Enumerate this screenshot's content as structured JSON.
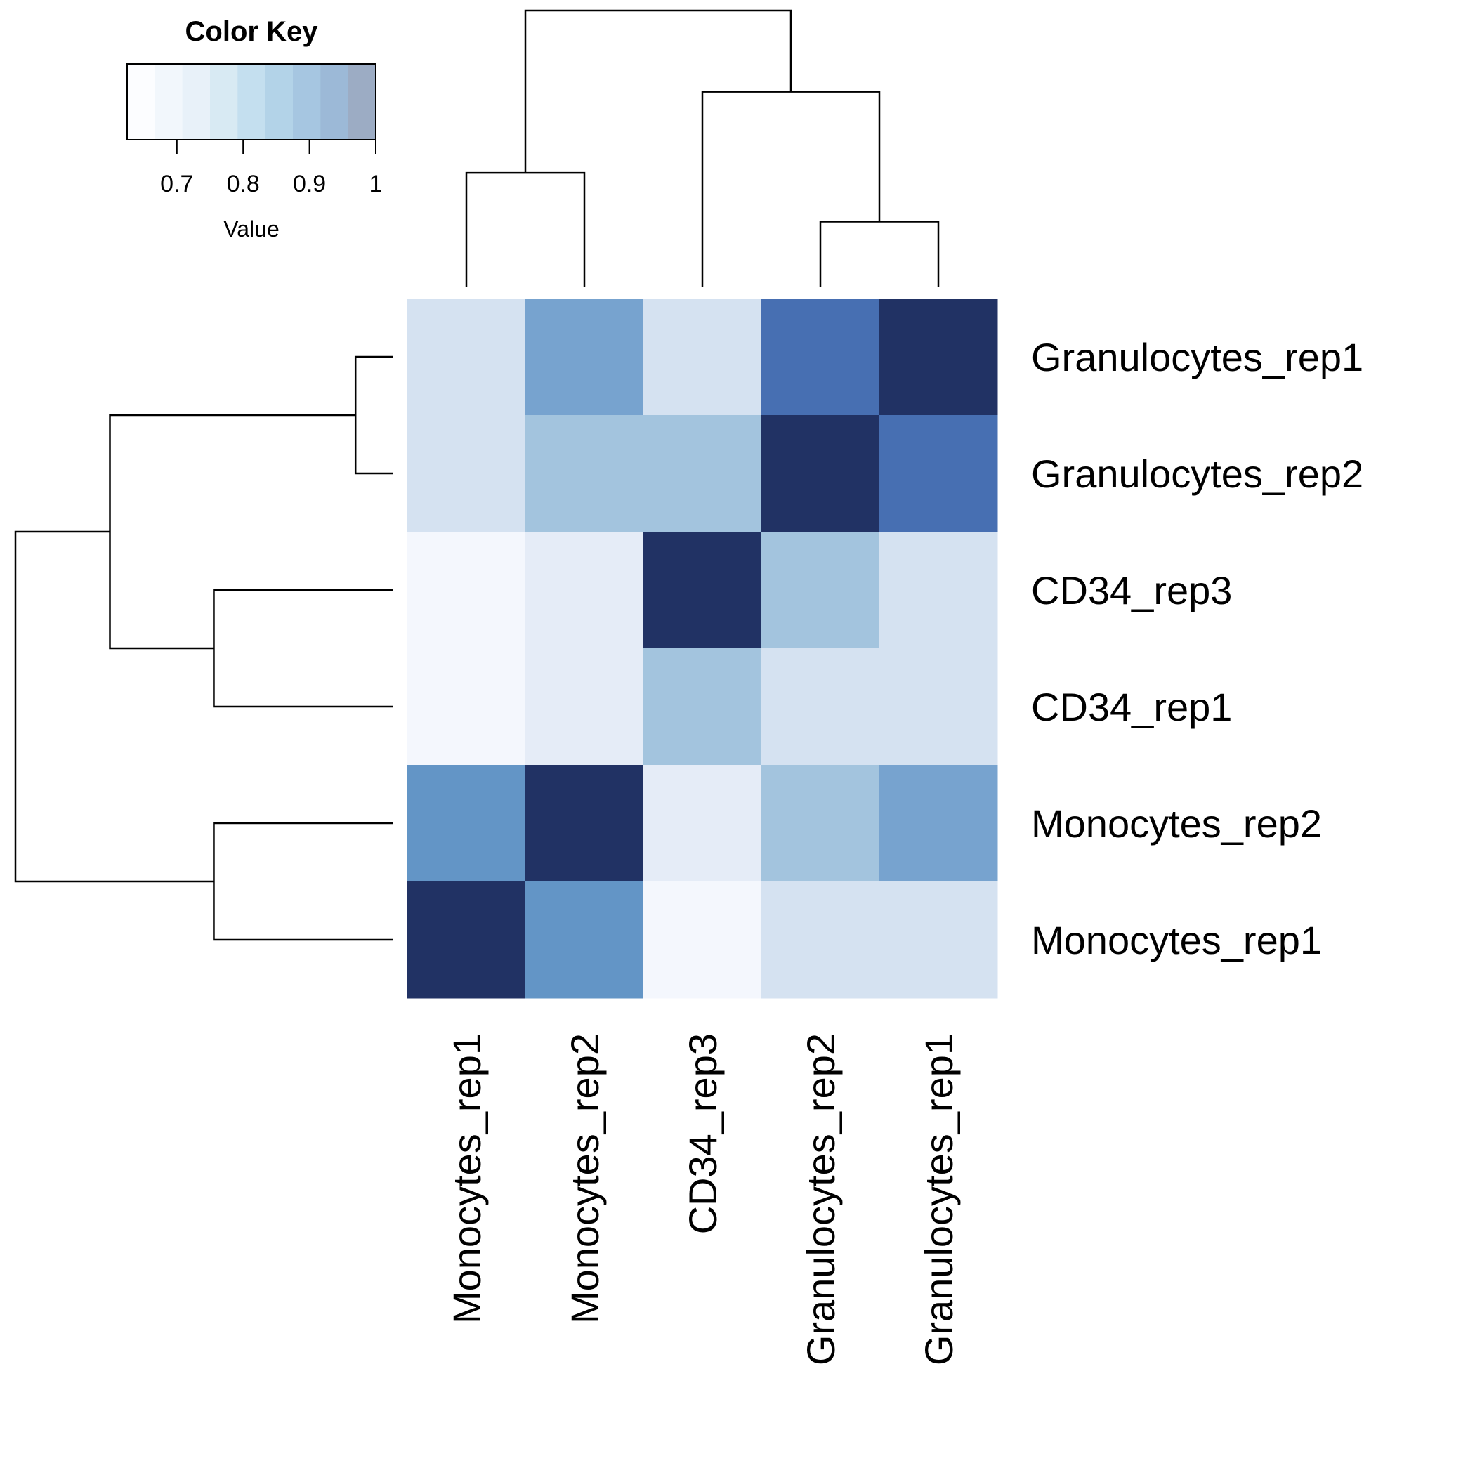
{
  "chart_data": {
    "type": "heatmap",
    "title": "",
    "rows": [
      "Granulocytes_rep1",
      "Granulocytes_rep2",
      "CD34_rep3",
      "CD34_rep1",
      "Monocytes_rep2",
      "Monocytes_rep1"
    ],
    "columns": [
      "Monocytes_rep1",
      "Monocytes_rep2",
      "CD34_rep3",
      "Granulocytes_rep2",
      "Granulocytes_rep1"
    ],
    "values": [
      [
        0.74,
        0.87,
        0.74,
        0.96,
        1.0
      ],
      [
        0.74,
        0.81,
        0.81,
        1.0,
        0.96
      ],
      [
        0.64,
        0.71,
        1.0,
        0.81,
        0.74
      ],
      [
        0.64,
        0.71,
        0.81,
        0.74,
        0.74
      ],
      [
        0.9,
        1.0,
        0.71,
        0.81,
        0.87
      ],
      [
        1.0,
        0.9,
        0.64,
        0.74,
        0.74
      ]
    ],
    "color_key": {
      "title": "Color Key",
      "xlabel": "Value",
      "range": [
        0.625,
        1.0
      ],
      "ticks": [
        "0.7",
        "0.8",
        "0.9",
        "1"
      ],
      "tick_values": [
        0.7,
        0.8,
        0.9,
        1.0
      ],
      "bin_colors": [
        "#f7fbff",
        "#deebf7",
        "#c6dbef",
        "#9ecae1",
        "#6baed6",
        "#4292c6",
        "#2171b5",
        "#08519c",
        "#08306b"
      ],
      "overlay_color": "#ffffff",
      "overlay_opacity": 0.6
    },
    "palette": {
      "stops": [
        0.625,
        0.72,
        0.8,
        0.85,
        0.9,
        0.96,
        1.0
      ],
      "colors": [
        "#f7fafe",
        "#e3eaf6",
        "#abcae0",
        "#84acd5",
        "#6395c6",
        "#476fb2",
        "#213264"
      ]
    },
    "row_dendrogram": {
      "merges": [
        [
          "Granulocytes_rep1",
          "Granulocytes_rep2",
          0.04
        ],
        [
          "CD34_rep3",
          "CD34_rep1",
          0.19
        ],
        [
          "Monocytes_rep2",
          "Monocytes_rep1",
          0.19
        ],
        [
          "g1",
          "g2",
          0.3
        ],
        [
          "g3",
          "g4",
          0.4
        ]
      ]
    },
    "col_dendrogram": {
      "merges": [
        [
          "Granulocytes_rep2",
          "Granulocytes_rep1",
          0.04
        ],
        [
          "Monocytes_rep1",
          "Monocytes_rep2",
          0.07
        ],
        [
          "CD34_rep3",
          "g1",
          0.12
        ],
        [
          "g2",
          "g3",
          0.17
        ]
      ]
    },
    "grid": false,
    "legend": "top-left"
  }
}
